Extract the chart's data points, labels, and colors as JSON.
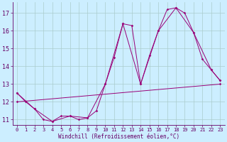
{
  "xlabel": "Windchill (Refroidissement éolien,°C)",
  "background_color": "#cceeff",
  "line_color": "#990077",
  "grid_color": "#aacccc",
  "xlim": [
    -0.5,
    23.5
  ],
  "ylim": [
    10.7,
    17.6
  ],
  "xticks": [
    0,
    1,
    2,
    3,
    4,
    5,
    6,
    7,
    8,
    9,
    10,
    11,
    12,
    13,
    14,
    15,
    16,
    17,
    18,
    19,
    20,
    21,
    22,
    23
  ],
  "yticks": [
    11,
    12,
    13,
    14,
    15,
    16,
    17
  ],
  "line1_x": [
    0,
    1,
    2,
    3,
    4,
    5,
    6,
    7,
    8,
    9,
    10,
    11,
    12,
    13,
    14,
    15,
    16,
    17,
    18,
    19,
    20,
    21,
    22,
    23
  ],
  "line1_y": [
    12.5,
    12.0,
    11.6,
    11.0,
    10.9,
    11.2,
    11.2,
    11.0,
    11.1,
    11.5,
    13.0,
    14.5,
    16.4,
    16.3,
    13.0,
    14.6,
    16.0,
    17.2,
    17.3,
    17.0,
    15.9,
    14.4,
    13.8,
    13.2
  ],
  "line2_x": [
    0,
    2,
    4,
    6,
    8,
    10,
    12,
    14,
    16,
    18,
    20,
    22,
    23
  ],
  "line2_y": [
    12.5,
    11.6,
    10.9,
    11.2,
    11.1,
    13.0,
    16.4,
    13.0,
    16.0,
    17.3,
    15.9,
    13.8,
    13.2
  ],
  "line3_x": [
    0,
    23
  ],
  "line3_y": [
    12.0,
    13.0
  ],
  "tick_color": "#660066",
  "tick_fontsize": 5,
  "xlabel_fontsize": 5.5
}
